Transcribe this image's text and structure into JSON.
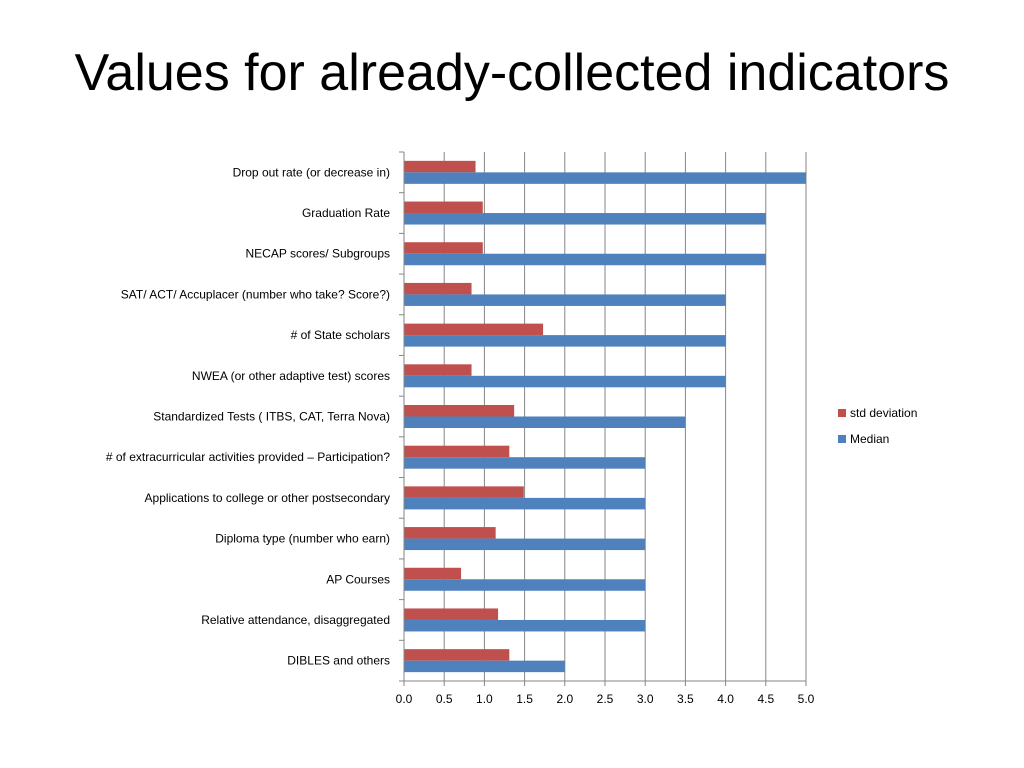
{
  "slide": {
    "title": "Values for already-collected indicators"
  },
  "chart_data": {
    "type": "bar",
    "orientation": "horizontal",
    "categories": [
      "Drop out rate (or decrease in)",
      "Graduation Rate",
      "NECAP scores/ Subgroups",
      "SAT/ ACT/ Accuplacer (number who take? Score?)",
      "# of State scholars",
      "NWEA (or other adaptive test) scores",
      "Standardized Tests ( ITBS, CAT, Terra Nova)",
      "# of extracurricular activities provided – Participation?",
      "Applications to college or other postsecondary",
      "Diploma type (number who earn)",
      "AP Courses",
      "Relative attendance, disaggregated",
      "DIBLES and others"
    ],
    "series": [
      {
        "name": "std deviation",
        "color": "#c0504d",
        "values": [
          0.89,
          0.98,
          0.98,
          0.84,
          1.73,
          0.84,
          1.37,
          1.31,
          1.49,
          1.14,
          0.71,
          1.17,
          1.31
        ]
      },
      {
        "name": "Median",
        "color": "#4f81bd",
        "values": [
          5.0,
          4.5,
          4.5,
          4.0,
          4.0,
          4.0,
          3.5,
          3.0,
          3.0,
          3.0,
          3.0,
          3.0,
          2.0
        ]
      }
    ],
    "xlim": [
      0,
      5
    ],
    "xticks": [
      "0.0",
      "0.5",
      "1.0",
      "1.5",
      "2.0",
      "2.5",
      "3.0",
      "3.5",
      "4.0",
      "4.5",
      "5.0"
    ],
    "grid": "vertical major gridlines",
    "legend": "right"
  }
}
